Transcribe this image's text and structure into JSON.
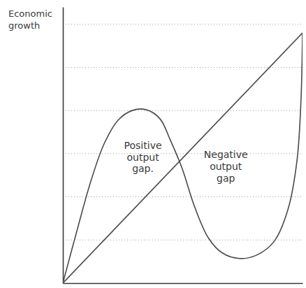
{
  "chart_data": {
    "type": "line",
    "ylabel": "Economic growth",
    "xlim": [
      0,
      10
    ],
    "ylim": [
      0,
      6.4
    ],
    "yticks": [
      1,
      2,
      3,
      4,
      5,
      6
    ],
    "grid": true,
    "tick_labels": false,
    "series": [
      {
        "color": "#4a4a4a",
        "line_style": "solid",
        "x": [
          0,
          10
        ],
        "values": [
          0,
          5.8
        ]
      },
      {
        "color": "#4a4a4a",
        "line_style": "solid",
        "x": [
          0,
          0.58,
          1.16,
          1.73,
          2.31,
          2.89,
          3.47,
          4.05,
          4.48,
          4.97,
          5.49,
          6.07,
          6.65,
          7.37,
          8.09,
          8.82,
          9.39,
          9.77,
          9.94,
          10
        ],
        "values": [
          0,
          1.2,
          2.35,
          3.24,
          3.78,
          4.0,
          4.02,
          3.81,
          3.32,
          2.67,
          1.78,
          1.05,
          0.7,
          0.57,
          0.65,
          0.97,
          1.7,
          2.84,
          4.29,
          5.8
        ]
      }
    ],
    "annotations": [
      {
        "text": "Positive output gap.",
        "x": 3.34,
        "y": 2.92
      },
      {
        "text": "Negative output gap",
        "x": 6.8,
        "y": 2.7
      }
    ]
  }
}
